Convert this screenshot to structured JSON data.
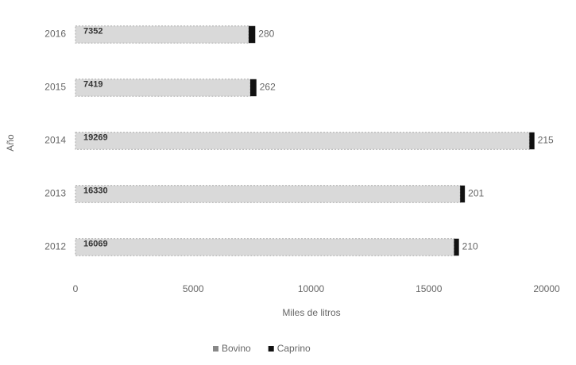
{
  "chart_data": {
    "type": "stacked-barh",
    "categories": [
      "2016",
      "2015",
      "2014",
      "2013",
      "2012"
    ],
    "series": [
      {
        "name": "Bovino",
        "color": "#d9d9d9",
        "values": [
          7352,
          7419,
          19269,
          16330,
          16069
        ]
      },
      {
        "name": "Caprino",
        "color": "#111111",
        "values": [
          280,
          262,
          215,
          201,
          210
        ]
      }
    ],
    "xlabel": "Miles de litros",
    "ylabel": "Año",
    "xlim": [
      0,
      20000
    ],
    "xticks": [
      0,
      5000,
      10000,
      15000,
      20000
    ],
    "legend": "bottom"
  }
}
